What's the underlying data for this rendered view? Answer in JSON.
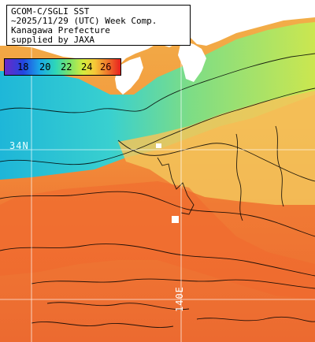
{
  "title": {
    "line1": "GCOM-C/SGLI SST",
    "line2": "~2025/11/29 (UTC) Week Comp.",
    "line3": "Kanagawa Prefecture",
    "line4": "supplied by JAXA"
  },
  "legend": {
    "labels": [
      "18",
      "20",
      "22",
      "24",
      "26"
    ],
    "colors": [
      "#6a28c8",
      "#2246e0",
      "#1aa6e8",
      "#2ed7b8",
      "#7be36a",
      "#d7ec3c",
      "#f6c638",
      "#f07d2c",
      "#e8201e"
    ]
  },
  "grid_labels": {
    "latitude": "34N",
    "longitude": "140E"
  },
  "palette": {
    "land": "#ffffff",
    "contour": "#000000",
    "grid": "#ffffff",
    "warm": "#f07a34",
    "cool": "#2fd3d7"
  }
}
